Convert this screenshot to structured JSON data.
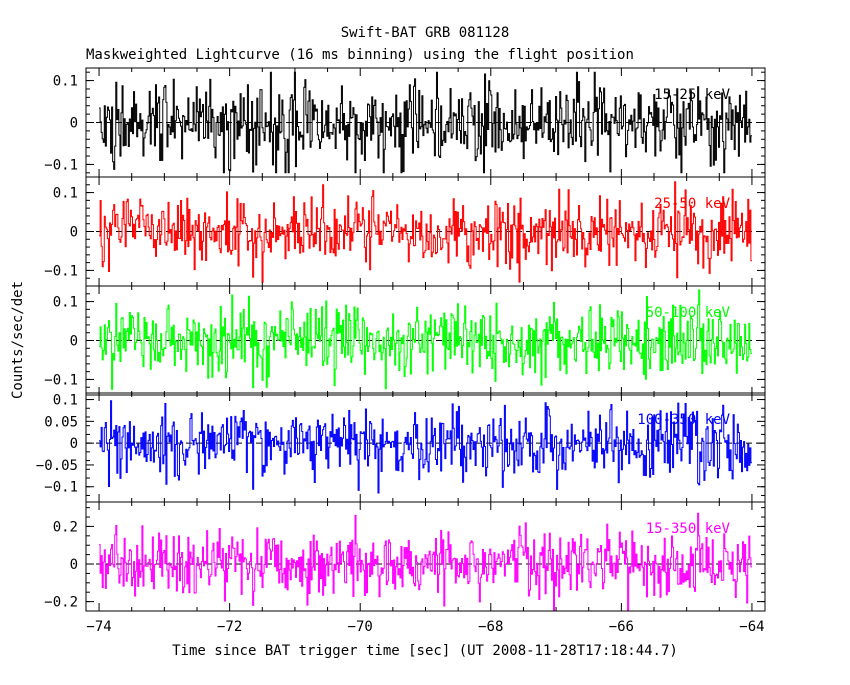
{
  "chart_data": {
    "type": "line",
    "title": "Swift-BAT GRB 081128",
    "subtitle": "Maskweighted Lightcurve (16 ms binning) using the flight position",
    "xlabel": "Time since BAT trigger time [sec] (UT 2008-11-28T17:18:44.7)",
    "ylabel": "Counts/sec/det",
    "xlim": [
      -74.2,
      -63.8
    ],
    "x_ticks": [
      -74,
      -72,
      -70,
      -68,
      -66,
      -64
    ],
    "x_tick_labels": [
      "−74",
      "−72",
      "−70",
      "−68",
      "−66",
      "−64"
    ],
    "x_start": -74.0,
    "x_end": -64.0,
    "bin_width": 0.016,
    "grid": false,
    "panels": [
      {
        "name": "15-25 keV",
        "label": "15-25 keV",
        "color": "#000000",
        "ylim": [
          -0.13,
          0.13
        ],
        "y_ticks": [
          -0.1,
          0,
          0.1
        ],
        "y_tick_labels": [
          "−0.1",
          "0",
          "0.1"
        ],
        "noise_std": 0.05,
        "peak_abs": 0.12
      },
      {
        "name": "25-50 keV",
        "label": "25-50 keV",
        "color": "#ff0000",
        "ylim": [
          -0.14,
          0.14
        ],
        "y_ticks": [
          -0.1,
          0,
          0.1
        ],
        "y_tick_labels": [
          "−0.1",
          "0",
          "0.1"
        ],
        "noise_std": 0.045,
        "peak_abs": 0.13
      },
      {
        "name": "50-100 keV",
        "label": "50-100 keV",
        "color": "#00ff00",
        "ylim": [
          -0.14,
          0.14
        ],
        "y_ticks": [
          -0.1,
          0,
          0.1
        ],
        "y_tick_labels": [
          "−0.1",
          "0",
          "0.1"
        ],
        "noise_std": 0.045,
        "peak_abs": 0.13
      },
      {
        "name": "100-350 keV",
        "label": "100-350 keV",
        "color": "#0000ff",
        "ylim": [
          -0.135,
          0.115
        ],
        "y_ticks": [
          -0.1,
          -0.05,
          0,
          0.05,
          0.1
        ],
        "y_tick_labels": [
          "−0.1",
          "−0.05",
          "0",
          "0.05",
          "0.1"
        ],
        "noise_std": 0.04,
        "peak_abs": 0.12
      },
      {
        "name": "15-350 keV",
        "label": "15-350 keV",
        "color": "#ff00ff",
        "ylim": [
          -0.25,
          0.33
        ],
        "y_ticks": [
          -0.2,
          0,
          0.2
        ],
        "y_tick_labels": [
          "−0.2",
          "0",
          "0.2"
        ],
        "noise_std": 0.09,
        "peak_abs": 0.3
      }
    ]
  }
}
